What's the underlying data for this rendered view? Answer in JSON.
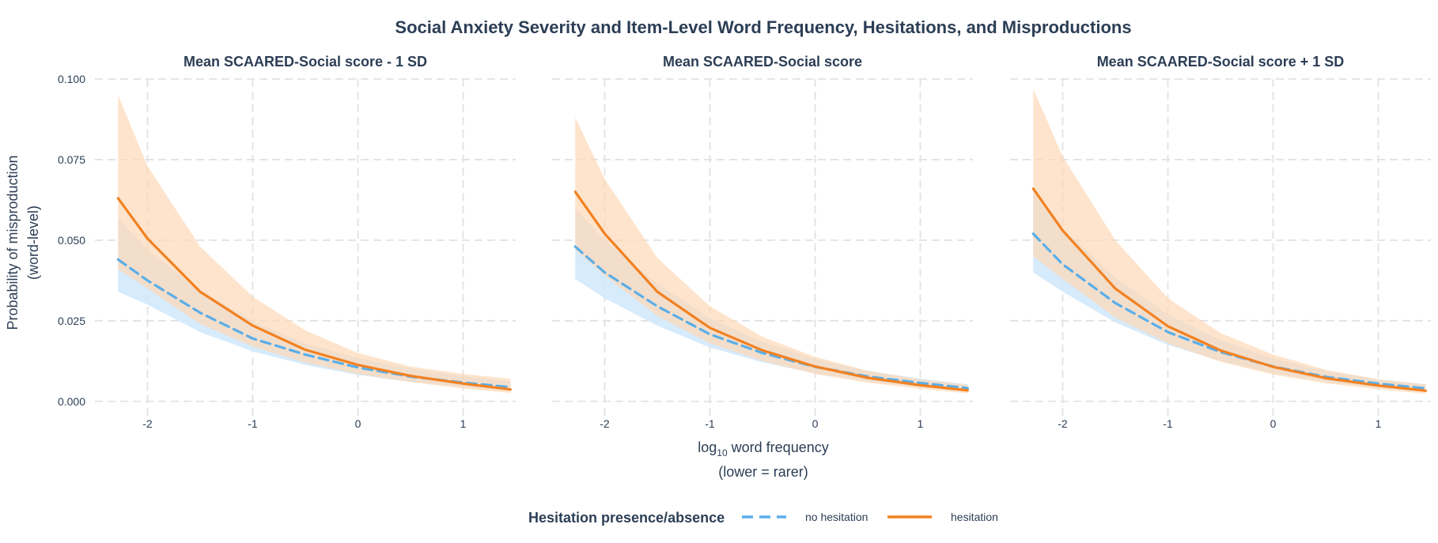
{
  "chart_data": {
    "type": "line",
    "title": "Social Anxiety Severity and Item-Level Word Frequency, Hesitations, and Misproductions",
    "ylabel_lines": [
      "Probability of misproduction",
      "(word-level)"
    ],
    "xlabel_main": "log",
    "xlabel_sub": "10",
    "xlabel_rest": " word frequency",
    "xlabel_line2": "(lower = rarer)",
    "xlim": [
      -2.5,
      1.5
    ],
    "ylim": [
      -0.003,
      0.1
    ],
    "xticks": [
      -2,
      -1,
      0,
      1
    ],
    "yticks": [
      0.0,
      0.025,
      0.05,
      0.075,
      0.1
    ],
    "ytick_labels": [
      "0.000",
      "0.025",
      "0.050",
      "0.075",
      "0.100"
    ],
    "grid": true,
    "legend": {
      "position": "bottom",
      "title": "Hesitation presence/absence",
      "entries": [
        "no hesitation",
        "hesitation"
      ]
    },
    "colors": {
      "no_hesitation_line": "#5aaee8",
      "no_hesitation_band": "#cfe8fb",
      "hesitation_line": "#f28121",
      "hesitation_band": "#fdd9b6",
      "grid": "#e2e2e2",
      "text": "#2c3e55"
    },
    "x": [
      -2.28,
      -2.0,
      -1.5,
      -1.0,
      -0.5,
      0.0,
      0.5,
      1.0,
      1.45
    ],
    "panels": [
      {
        "title": "Mean SCAARED-Social score - 1 SD",
        "series": [
          {
            "name": "no hesitation",
            "values": [
              0.044,
              0.0375,
              0.0275,
              0.0195,
              0.0145,
              0.0105,
              0.0077,
              0.0058,
              0.0044
            ],
            "lower": [
              0.034,
              0.03,
              0.0215,
              0.0155,
              0.0113,
              0.0082,
              0.006,
              0.0045,
              0.0032
            ],
            "upper": [
              0.057,
              0.047,
              0.0345,
              0.0248,
              0.018,
              0.0135,
              0.0102,
              0.0078,
              0.0061
            ]
          },
          {
            "name": "hesitation",
            "values": [
              0.063,
              0.0505,
              0.034,
              0.0235,
              0.016,
              0.0113,
              0.0079,
              0.0055,
              0.0037
            ],
            "lower": [
              0.041,
              0.035,
              0.024,
              0.017,
              0.012,
              0.0085,
              0.006,
              0.004,
              0.0026
            ],
            "upper": [
              0.095,
              0.073,
              0.048,
              0.0325,
              0.022,
              0.015,
              0.0108,
              0.0085,
              0.007
            ]
          }
        ]
      },
      {
        "title": "Mean SCAARED-Social score",
        "series": [
          {
            "name": "no hesitation",
            "values": [
              0.048,
              0.04,
              0.0295,
              0.0208,
              0.015,
              0.0107,
              0.0077,
              0.0057,
              0.0041
            ],
            "lower": [
              0.038,
              0.032,
              0.0235,
              0.0167,
              0.0121,
              0.0087,
              0.0062,
              0.0045,
              0.0031
            ],
            "upper": [
              0.06,
              0.05,
              0.0365,
              0.0258,
              0.0185,
              0.0132,
              0.0095,
              0.007,
              0.0053
            ]
          },
          {
            "name": "hesitation",
            "values": [
              0.065,
              0.052,
              0.034,
              0.0228,
              0.0158,
              0.0108,
              0.0073,
              0.005,
              0.0034
            ],
            "lower": [
              0.047,
              0.039,
              0.0265,
              0.018,
              0.0125,
              0.0085,
              0.0058,
              0.0039,
              0.0025
            ],
            "upper": [
              0.088,
              0.069,
              0.0445,
              0.0295,
              0.02,
              0.0138,
              0.0095,
              0.0068,
              0.0051
            ]
          }
        ]
      },
      {
        "title": "Mean SCAARED-Social score + 1 SD",
        "series": [
          {
            "name": "no hesitation",
            "values": [
              0.052,
              0.0425,
              0.0305,
              0.0215,
              0.0153,
              0.0108,
              0.0076,
              0.0055,
              0.004
            ],
            "lower": [
              0.04,
              0.034,
              0.0245,
              0.0175,
              0.0125,
              0.0088,
              0.0061,
              0.0043,
              0.003
            ],
            "upper": [
              0.065,
              0.0535,
              0.0385,
              0.027,
              0.019,
              0.0133,
              0.0094,
              0.0068,
              0.0053
            ]
          },
          {
            "name": "hesitation",
            "values": [
              0.066,
              0.053,
              0.035,
              0.0233,
              0.0158,
              0.0107,
              0.0072,
              0.0049,
              0.0033
            ],
            "lower": [
              0.045,
              0.038,
              0.026,
              0.018,
              0.0123,
              0.0083,
              0.0056,
              0.0037,
              0.0024
            ],
            "upper": [
              0.097,
              0.076,
              0.05,
              0.032,
              0.0212,
              0.0145,
              0.0098,
              0.0068,
              0.0053
            ]
          }
        ]
      }
    ]
  }
}
